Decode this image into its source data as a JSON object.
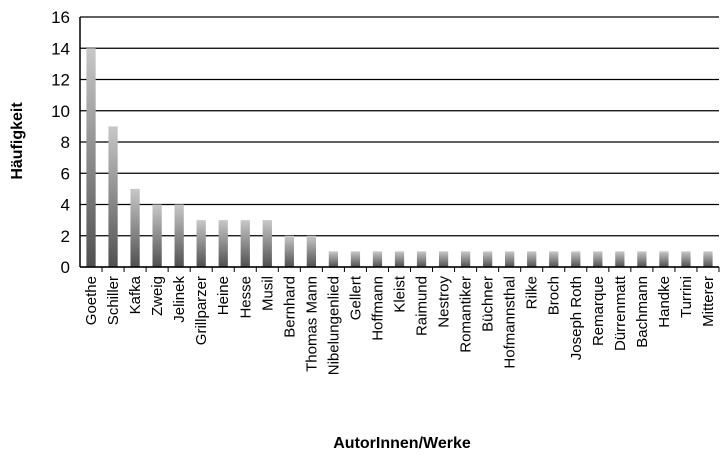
{
  "chart_data": {
    "type": "bar",
    "title": "",
    "xlabel": "AutorInnen/Werke",
    "ylabel": "Häufigkeit",
    "ylim": [
      0,
      16
    ],
    "yticks": [
      0,
      2,
      4,
      6,
      8,
      10,
      12,
      14,
      16
    ],
    "grid": true,
    "legend": "none",
    "colors": {
      "bar_top": "#c8c8c8",
      "bar_bottom": "#505050",
      "grid": "#000000"
    },
    "categories": [
      "Goethe",
      "Schiller",
      "Kafka",
      "Zweig",
      "Jelinek",
      "Grillparzer",
      "Heine",
      "Hesse",
      "Musil",
      "Bernhard",
      "Thomas Mann",
      "Nibelungenlied",
      "Gellert",
      "Hoffmann",
      "Kleist",
      "Raimund",
      "Nestroy",
      "Romantiker",
      "Büchner",
      "Hofmannsthal",
      "Rilke",
      "Broch",
      "Joseph Roth",
      "Remarque",
      "Dürrenmatt",
      "Bachmann",
      "Handke",
      "Turrini",
      "Mitterer"
    ],
    "values": [
      14,
      9,
      5,
      4,
      4,
      3,
      3,
      3,
      3,
      2,
      2,
      1,
      1,
      1,
      1,
      1,
      1,
      1,
      1,
      1,
      1,
      1,
      1,
      1,
      1,
      1,
      1,
      1,
      1
    ]
  }
}
